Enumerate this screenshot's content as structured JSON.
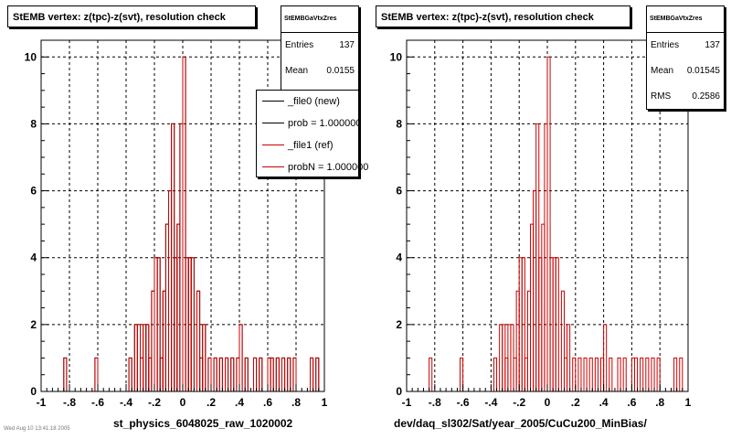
{
  "corner_note": "Wed Aug 10 13:41:18 2005",
  "colors": {
    "new": "#000000",
    "ref": "#cc0000",
    "frame": "#000000",
    "grid": "#000000"
  },
  "chart_data": [
    {
      "type": "histogram",
      "title": "StEMB  vertex: z(tpc)-z(svt), resolution check",
      "xlabel": "st_physics_6048025_raw_1020002",
      "ylabel": "",
      "xlim": [
        -1,
        1
      ],
      "ylim": [
        0,
        10.5
      ],
      "xticks": [
        -1,
        -0.8,
        -0.6,
        -0.4,
        -0.2,
        0,
        0.2,
        0.4,
        0.6,
        0.8,
        1
      ],
      "yticks": [
        0,
        2,
        4,
        6,
        8,
        10
      ],
      "grid": true,
      "bin_width": 0.02,
      "x": [
        -0.83,
        -0.61,
        -0.37,
        -0.33,
        -0.31,
        -0.29,
        -0.27,
        -0.25,
        -0.23,
        -0.21,
        -0.19,
        -0.17,
        -0.15,
        -0.13,
        -0.11,
        -0.09,
        -0.07,
        -0.05,
        -0.03,
        -0.01,
        0.01,
        0.03,
        0.05,
        0.07,
        0.11,
        0.13,
        0.15,
        0.19,
        0.23,
        0.27,
        0.31,
        0.35,
        0.39,
        0.41,
        0.45,
        0.51,
        0.55,
        0.61,
        0.63,
        0.67,
        0.71,
        0.75,
        0.79,
        0.91,
        0.95
      ],
      "series": [
        {
          "name": "_file0 (new)",
          "color": "#000000",
          "values": [
            1,
            1,
            1,
            2,
            2,
            1,
            2,
            2,
            1,
            3,
            4,
            4,
            1,
            3,
            5,
            6,
            8,
            4,
            5,
            8,
            10,
            4,
            4,
            4,
            3,
            1,
            2,
            1,
            1,
            1,
            1,
            1,
            1,
            2,
            1,
            1,
            1,
            1,
            1,
            1,
            1,
            1,
            1,
            1,
            1
          ]
        },
        {
          "name": "_file1 (ref)",
          "color": "#cc0000",
          "values": [
            1,
            1,
            1,
            2,
            2,
            1,
            2,
            2,
            1,
            3,
            4,
            4,
            1,
            3,
            5,
            6,
            8,
            4,
            5,
            8,
            10,
            4,
            4,
            4,
            3,
            1,
            2,
            1,
            1,
            1,
            1,
            1,
            1,
            2,
            1,
            1,
            1,
            1,
            1,
            1,
            1,
            1,
            1,
            1,
            1
          ]
        }
      ],
      "stats": {
        "name": "StEMBGaVtxZres",
        "entries": "137",
        "mean": "0.0155"
      },
      "legend": {
        "placement": "top-right",
        "entries": [
          {
            "label": "_file0 (new)",
            "color": "#000000"
          },
          {
            "label": "prob = 1.000000",
            "color": "#000000"
          },
          {
            "label": "_file1 (ref)",
            "color": "#cc0000"
          },
          {
            "label": "probN = 1.000000",
            "color": "#cc0000"
          }
        ]
      }
    },
    {
      "type": "histogram",
      "title": "StEMB  vertex: z(tpc)-z(svt), resolution check",
      "xlabel": "dev/daq_sl302/Sat/year_2005/CuCu200_MinBias/",
      "ylabel": "",
      "xlim": [
        -1,
        1
      ],
      "ylim": [
        0,
        10.5
      ],
      "xticks": [
        -1,
        -0.8,
        -0.6,
        -0.4,
        -0.2,
        0,
        0.2,
        0.4,
        0.6,
        0.8,
        1
      ],
      "yticks": [
        0,
        2,
        4,
        6,
        8,
        10
      ],
      "grid": true,
      "bin_width": 0.02,
      "x": [
        -0.83,
        -0.61,
        -0.37,
        -0.33,
        -0.31,
        -0.29,
        -0.27,
        -0.25,
        -0.23,
        -0.21,
        -0.19,
        -0.17,
        -0.15,
        -0.13,
        -0.11,
        -0.09,
        -0.07,
        -0.05,
        -0.03,
        -0.01,
        0.01,
        0.03,
        0.05,
        0.07,
        0.11,
        0.13,
        0.15,
        0.19,
        0.23,
        0.27,
        0.31,
        0.35,
        0.39,
        0.41,
        0.45,
        0.51,
        0.55,
        0.61,
        0.63,
        0.67,
        0.71,
        0.75,
        0.79,
        0.91,
        0.95
      ],
      "series": [
        {
          "name": "",
          "color": "#cc0000",
          "values": [
            1,
            1,
            1,
            2,
            2,
            1,
            2,
            2,
            1,
            3,
            4,
            4,
            1,
            3,
            5,
            6,
            8,
            4,
            5,
            8,
            10,
            4,
            4,
            4,
            3,
            1,
            2,
            1,
            1,
            1,
            1,
            1,
            1,
            2,
            1,
            1,
            1,
            1,
            1,
            1,
            1,
            1,
            1,
            1,
            1
          ]
        }
      ],
      "stats": {
        "name": "StEMBGaVtxZres",
        "entries": "137",
        "mean": "0.01545",
        "rms": "0.2586"
      }
    }
  ]
}
